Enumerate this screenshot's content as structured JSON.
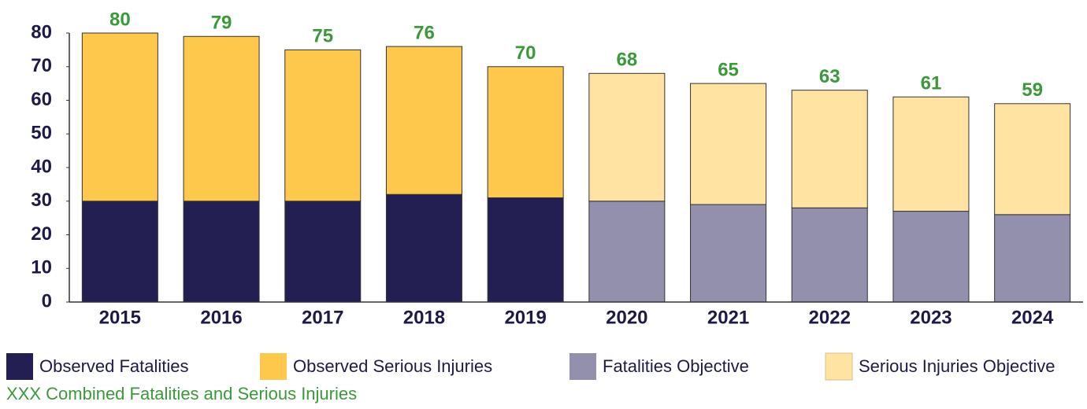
{
  "chart_data": {
    "type": "stacked_bar",
    "categories": [
      "2015",
      "2016",
      "2017",
      "2018",
      "2019",
      "2020",
      "2021",
      "2022",
      "2023",
      "2024"
    ],
    "series": [
      {
        "name": "Observed Fatalities",
        "color": "#241f52",
        "values": [
          30,
          30,
          30,
          32,
          31,
          null,
          null,
          null,
          null,
          null
        ]
      },
      {
        "name": "Observed Serious Injuries",
        "color": "#fec84d",
        "values": [
          50,
          49,
          45,
          44,
          39,
          null,
          null,
          null,
          null,
          null
        ]
      },
      {
        "name": "Fatalities Objective",
        "color": "#9290ac",
        "values": [
          null,
          null,
          null,
          null,
          null,
          30,
          29,
          28,
          27,
          26
        ]
      },
      {
        "name": "Serious Injuries Objective",
        "color": "#fee3a2",
        "values": [
          null,
          null,
          null,
          null,
          null,
          38,
          36,
          35,
          34,
          33
        ]
      }
    ],
    "totals": [
      80,
      79,
      75,
      76,
      70,
      68,
      65,
      63,
      61,
      59
    ],
    "totals_note": "XXX Combined Fatalities and Serious Injuries",
    "ylim": [
      0,
      80
    ],
    "yticks": [
      0,
      10,
      20,
      30,
      40,
      50,
      60,
      70,
      80
    ],
    "grid": false
  }
}
